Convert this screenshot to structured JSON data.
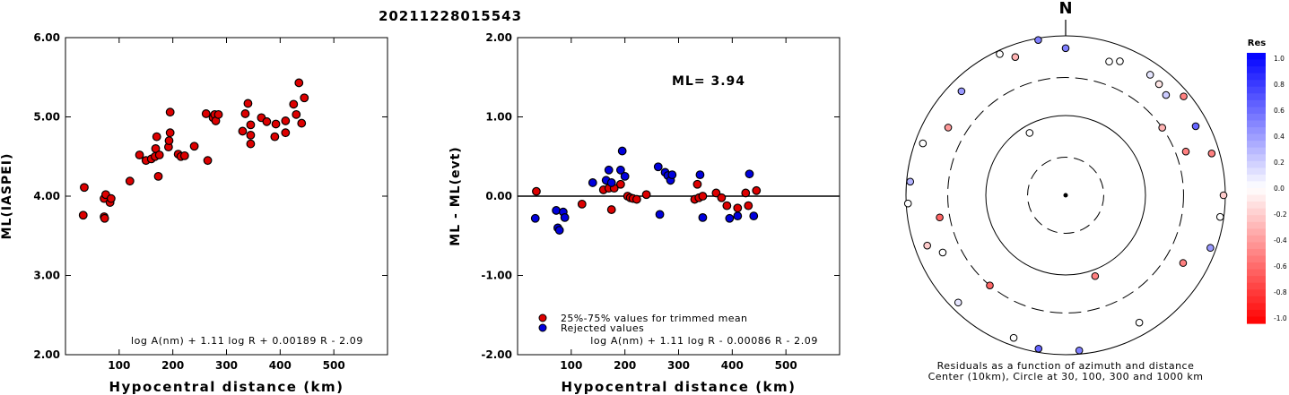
{
  "title": "20211228015543",
  "chart_data": [
    {
      "type": "scatter",
      "id": "ml-vs-distance",
      "xlabel": "Hypocentral distance (km)",
      "ylabel": "ML(IASPEI)",
      "xlim": [
        0,
        600
      ],
      "ylim": [
        2.0,
        6.0
      ],
      "xticks": [
        100,
        200,
        300,
        400,
        500
      ],
      "yticks": [
        2.0,
        3.0,
        4.0,
        5.0,
        6.0
      ],
      "ytick_labels": [
        "2.00",
        "3.00",
        "4.00",
        "5.00",
        "6.00"
      ],
      "formula": "log A(nm) + 1.11 log R + 0.00189 R - 2.09",
      "marker_color": "#dd0000",
      "points": [
        [
          35,
          4.11
        ],
        [
          33,
          3.76
        ],
        [
          72,
          3.97
        ],
        [
          72,
          3.74
        ],
        [
          73,
          3.72
        ],
        [
          75,
          4.02
        ],
        [
          83,
          3.92
        ],
        [
          85,
          3.97
        ],
        [
          120,
          4.19
        ],
        [
          138,
          4.52
        ],
        [
          150,
          4.45
        ],
        [
          160,
          4.47
        ],
        [
          167,
          4.5
        ],
        [
          168,
          4.6
        ],
        [
          170,
          4.75
        ],
        [
          173,
          4.25
        ],
        [
          175,
          4.52
        ],
        [
          192,
          4.62
        ],
        [
          193,
          4.7
        ],
        [
          195,
          4.8
        ],
        [
          195,
          5.06
        ],
        [
          210,
          4.53
        ],
        [
          215,
          4.5
        ],
        [
          222,
          4.51
        ],
        [
          240,
          4.63
        ],
        [
          262,
          5.04
        ],
        [
          265,
          4.45
        ],
        [
          275,
          4.99
        ],
        [
          278,
          5.03
        ],
        [
          280,
          4.95
        ],
        [
          285,
          5.03
        ],
        [
          330,
          4.82
        ],
        [
          335,
          5.04
        ],
        [
          340,
          5.17
        ],
        [
          345,
          4.77
        ],
        [
          345,
          4.9
        ],
        [
          345,
          4.66
        ],
        [
          365,
          4.99
        ],
        [
          375,
          4.94
        ],
        [
          390,
          4.75
        ],
        [
          392,
          4.91
        ],
        [
          410,
          4.8
        ],
        [
          410,
          4.95
        ],
        [
          425,
          5.16
        ],
        [
          430,
          5.03
        ],
        [
          435,
          5.43
        ],
        [
          440,
          4.92
        ],
        [
          445,
          5.24
        ]
      ]
    },
    {
      "type": "scatter",
      "id": "residual-vs-distance",
      "xlabel": "Hypocentral distance (km)",
      "ylabel": "ML - ML(evt)",
      "xlim": [
        0,
        600
      ],
      "ylim": [
        -2.0,
        2.0
      ],
      "xticks": [
        100,
        200,
        300,
        400,
        500
      ],
      "yticks": [
        -2.0,
        -1.0,
        0.0,
        1.0,
        2.0
      ],
      "ytick_labels": [
        "-2.00",
        "-1.00",
        "0.00",
        "1.00",
        "2.00"
      ],
      "annotation": "ML= 3.94",
      "formula": "log A(nm) + 1.11 log R - 0.00086 R - 2.09",
      "legend": [
        {
          "label": "25%-75% values for trimmed mean",
          "color": "#dd0000"
        },
        {
          "label": "Rejected values",
          "color": "#0000dd"
        }
      ],
      "series": [
        {
          "name": "25%-75% values for trimmed mean",
          "color": "#dd0000",
          "points": [
            [
              35,
              0.06
            ],
            [
              120,
              -0.1
            ],
            [
              160,
              0.08
            ],
            [
              170,
              0.1
            ],
            [
              175,
              -0.17
            ],
            [
              180,
              0.1
            ],
            [
              192,
              0.15
            ],
            [
              205,
              0.0
            ],
            [
              210,
              -0.02
            ],
            [
              215,
              -0.03
            ],
            [
              222,
              -0.04
            ],
            [
              240,
              0.02
            ],
            [
              330,
              -0.04
            ],
            [
              335,
              0.15
            ],
            [
              338,
              -0.02
            ],
            [
              345,
              0.0
            ],
            [
              370,
              0.04
            ],
            [
              380,
              -0.02
            ],
            [
              390,
              -0.12
            ],
            [
              410,
              -0.15
            ],
            [
              425,
              0.04
            ],
            [
              430,
              -0.12
            ],
            [
              445,
              0.07
            ]
          ]
        },
        {
          "name": "Rejected values",
          "color": "#0000dd",
          "points": [
            [
              33,
              -0.28
            ],
            [
              72,
              -0.18
            ],
            [
              75,
              -0.4
            ],
            [
              78,
              -0.43
            ],
            [
              85,
              -0.2
            ],
            [
              88,
              -0.27
            ],
            [
              140,
              0.17
            ],
            [
              165,
              0.2
            ],
            [
              170,
              0.33
            ],
            [
              175,
              0.17
            ],
            [
              192,
              0.33
            ],
            [
              195,
              0.57
            ],
            [
              200,
              0.25
            ],
            [
              262,
              0.37
            ],
            [
              265,
              -0.23
            ],
            [
              275,
              0.3
            ],
            [
              280,
              0.26
            ],
            [
              285,
              0.2
            ],
            [
              288,
              0.27
            ],
            [
              340,
              0.27
            ],
            [
              345,
              -0.27
            ],
            [
              395,
              -0.28
            ],
            [
              410,
              -0.25
            ],
            [
              432,
              0.28
            ],
            [
              440,
              -0.25
            ]
          ]
        }
      ]
    },
    {
      "type": "polar-scatter",
      "id": "residuals-azimuth-distance",
      "north_label": "N",
      "caption_line1": "Residuals as a function of azimuth and distance",
      "caption_line2": "Center (10km), Circle at 30, 100, 300 and 1000 km",
      "colorbar": {
        "title": "Res",
        "range": [
          -1.0,
          1.0
        ],
        "tick_labels": [
          "1.0",
          "0.8",
          "0.6",
          "0.4",
          "0.2",
          "0.0",
          "-0.2",
          "-0.4",
          "-0.6",
          "-0.8",
          "-1.0"
        ]
      },
      "stations": [
        {
          "az": 0,
          "dist": 700,
          "res": 0.5
        },
        {
          "az": 18,
          "dist": 580,
          "res": 0.0
        },
        {
          "az": 22,
          "dist": 650,
          "res": 0.0
        },
        {
          "az": 35,
          "dist": 700,
          "res": 0.1
        },
        {
          "az": 40,
          "dist": 660,
          "res": -0.1
        },
        {
          "az": 45,
          "dist": 600,
          "res": 0.2
        },
        {
          "az": 50,
          "dist": 850,
          "res": -0.5
        },
        {
          "az": 55,
          "dist": 300,
          "res": -0.3
        },
        {
          "az": 62,
          "dist": 700,
          "res": 0.6
        },
        {
          "az": 70,
          "dist": 400,
          "res": -0.5
        },
        {
          "az": 74,
          "dist": 800,
          "res": -0.5
        },
        {
          "az": 90,
          "dist": 950,
          "res": -0.2
        },
        {
          "az": 98,
          "dist": 900,
          "res": 0.0
        },
        {
          "az": 110,
          "dist": 850,
          "res": 0.4
        },
        {
          "az": 120,
          "dist": 500,
          "res": -0.5
        },
        {
          "az": 150,
          "dist": 700,
          "res": 0.0
        },
        {
          "az": 160,
          "dist": 120,
          "res": -0.5
        },
        {
          "az": 175,
          "dist": 900,
          "res": 0.5
        },
        {
          "az": 190,
          "dist": 900,
          "res": 0.6
        },
        {
          "az": 200,
          "dist": 800,
          "res": 0.0
        },
        {
          "az": 220,
          "dist": 300,
          "res": -0.6
        },
        {
          "az": 225,
          "dist": 800,
          "res": 0.1
        },
        {
          "az": 245,
          "dist": 500,
          "res": 0.0
        },
        {
          "az": 250,
          "dist": 700,
          "res": -0.2
        },
        {
          "az": 260,
          "dist": 400,
          "res": -0.6
        },
        {
          "az": 267,
          "dist": 950,
          "res": 0.0
        },
        {
          "az": 275,
          "dist": 900,
          "res": 0.3
        },
        {
          "az": 290,
          "dist": 800,
          "res": 0.0
        },
        {
          "az": 300,
          "dist": 500,
          "res": -0.4
        },
        {
          "az": 315,
          "dist": 700,
          "res": 0.4
        },
        {
          "az": 330,
          "dist": 80,
          "res": 0.0
        },
        {
          "az": 335,
          "dist": 900,
          "res": 0.0
        },
        {
          "az": 340,
          "dist": 700,
          "res": -0.3
        },
        {
          "az": 350,
          "dist": 950,
          "res": 0.5
        }
      ]
    }
  ]
}
